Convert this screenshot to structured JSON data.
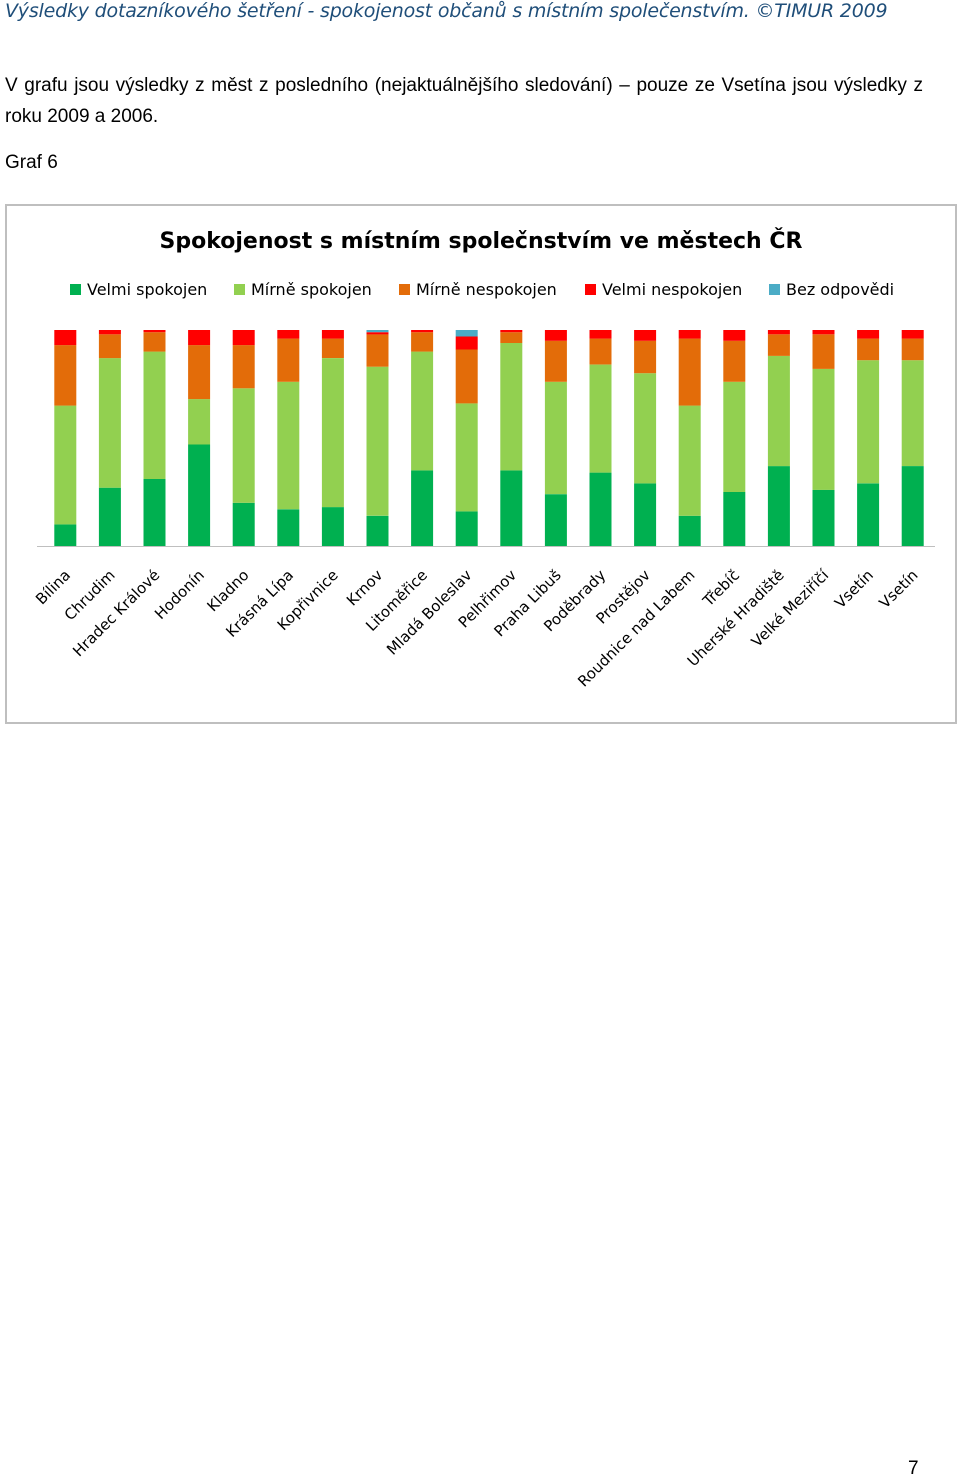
{
  "header": {
    "text": "Výsledky dotazníkového šetření - spokojenost občanů s místním společenstvím. ©TIMUR 2009"
  },
  "intro": {
    "text": "V grafu jsou výsledky z měst z posledního (nejaktuálnějšího sledování) – pouze ze Vsetína jsou výsledky z roku 2009 a 2006."
  },
  "graf_label": "Graf 6",
  "page_number": "7",
  "chart_data": {
    "type": "bar",
    "stacked": true,
    "percent_stacked": true,
    "title": "Spokojenost s místním společnstvím ve městech ČR",
    "legend_position": "top",
    "grid": false,
    "ylim": [
      0,
      100
    ],
    "categories": [
      "Bílina",
      "Chrudim",
      "Hradec Králové",
      "Hodonín",
      "Kladno",
      "Krásná Lípa",
      "Kopřivnice",
      "Krnov",
      "Litoměřice",
      "Mladá Boleslav",
      "Pelhřimov",
      "Praha Libuš",
      "Poděbrady",
      "Prostějov",
      "Roudnice nad Labem",
      "Třebíč",
      "Uherské Hradiště",
      "Velké Meziříčí",
      "Vsetín",
      "Vsetín"
    ],
    "series": [
      {
        "name": "Velmi spokojen",
        "color": "#00b050",
        "values": [
          10,
          27,
          31,
          47,
          20,
          17,
          18,
          14,
          35,
          16,
          35,
          24,
          34,
          29,
          14,
          25,
          37,
          26,
          29,
          37
        ]
      },
      {
        "name": "Mírně spokojen",
        "color": "#92d050",
        "values": [
          55,
          60,
          59,
          21,
          53,
          59,
          69,
          69,
          55,
          50,
          59,
          52,
          50,
          51,
          51,
          51,
          51,
          56,
          57,
          49
        ]
      },
      {
        "name": "Mírně nespokojen",
        "color": "#e36c09",
        "values": [
          28,
          11,
          9,
          25,
          20,
          20,
          9,
          15,
          9,
          25,
          5,
          19,
          12,
          15,
          31,
          19,
          10,
          16,
          10,
          10
        ]
      },
      {
        "name": "Velmi nespokojen",
        "color": "#ff0000",
        "values": [
          7,
          2,
          1,
          7,
          7,
          4,
          4,
          1,
          1,
          6,
          1,
          5,
          4,
          5,
          4,
          5,
          2,
          2,
          4,
          4
        ]
      },
      {
        "name": "Bez odpovědi",
        "color": "#4bacc6",
        "values": [
          0,
          0,
          0,
          0,
          0,
          0,
          0,
          1,
          0,
          3,
          0,
          0,
          0,
          0,
          0,
          0,
          0,
          0,
          0,
          0
        ]
      }
    ]
  }
}
